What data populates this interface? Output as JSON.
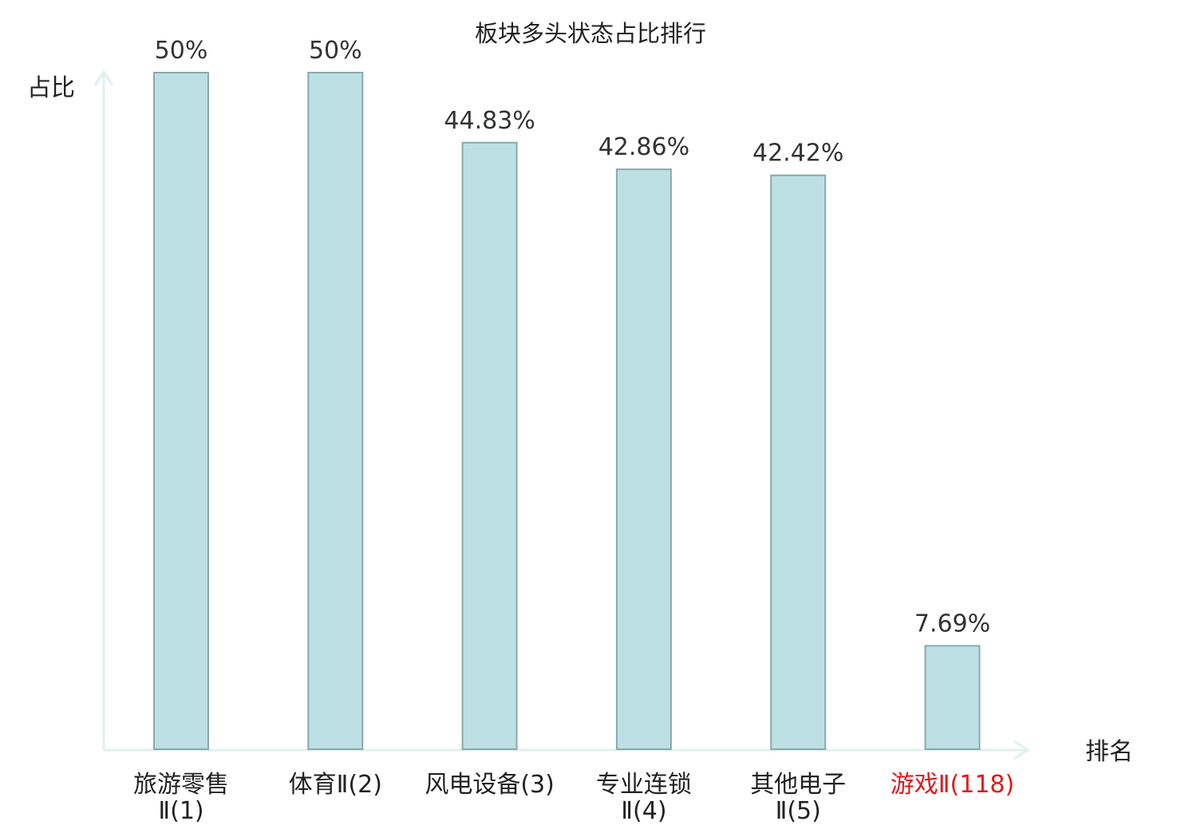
{
  "chart_data": {
    "type": "bar",
    "title": "板块多头状态占比排行",
    "ylabel": "占比",
    "xlabel": "排名",
    "categories": [
      [
        "旅游零售",
        "Ⅱ(1)"
      ],
      [
        "体育Ⅱ(2)"
      ],
      [
        "风电设备(3)"
      ],
      [
        "专业连锁",
        "Ⅱ(4)"
      ],
      [
        "其他电子",
        "Ⅱ(5)"
      ],
      [
        "游戏Ⅱ(118)"
      ]
    ],
    "values": [
      50,
      50,
      44.83,
      42.86,
      42.42,
      7.69
    ],
    "value_labels": [
      "50%",
      "50%",
      "44.83%",
      "42.86%",
      "42.42%",
      "7.69%"
    ],
    "highlight_index": 5,
    "ylim": [
      0,
      50
    ],
    "grid": false,
    "colors": {
      "bar_fill": "#bce0e3",
      "bar_stroke": "#8aa9ab",
      "axis": "#dff1ee",
      "text": "#333333",
      "highlight_text": "#e0191b"
    }
  }
}
